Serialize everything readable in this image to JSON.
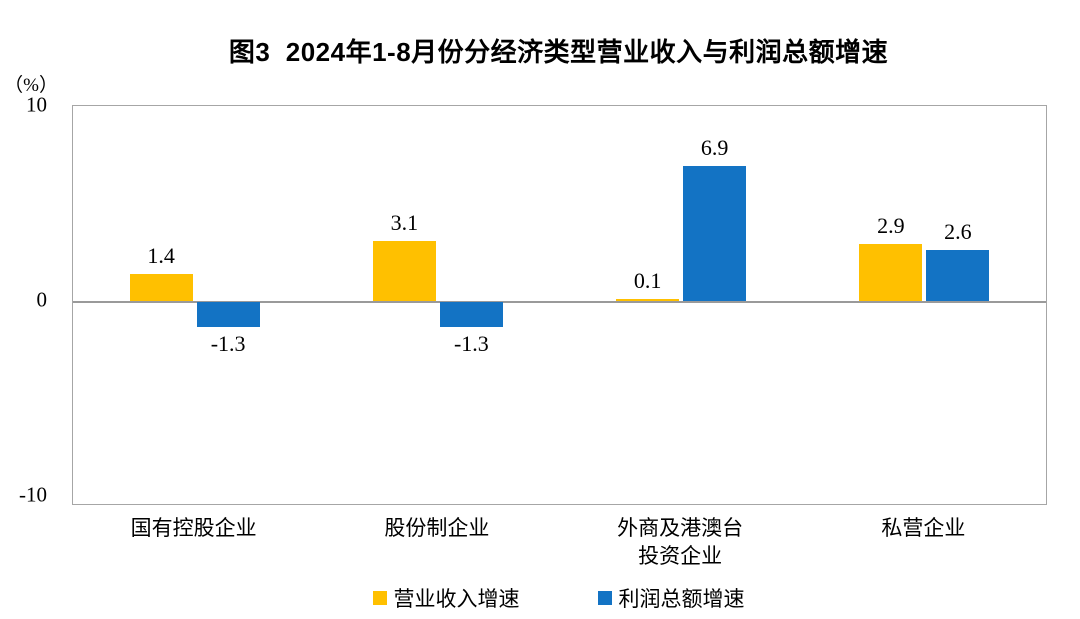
{
  "title": "图3  2024年1-8月份分经济类型营业收入与利润总额增速",
  "unit_label": "（%）",
  "chart_data": {
    "type": "bar",
    "title": "图3 2024年1-8月份分经济类型营业收入与利润总额增速",
    "ylabel": "（%）",
    "xlabel": "",
    "ylim": [
      -10,
      10
    ],
    "yticks": [
      10,
      0,
      -10
    ],
    "grid": "zero-line-only",
    "legend_position": "bottom",
    "categories": [
      "国有控股企业",
      "股份制企业",
      "外商及港澳台\n投资企业",
      "私营企业"
    ],
    "series": [
      {
        "name": "营业收入增速",
        "color": "#FFC000",
        "values": [
          1.4,
          3.1,
          0.1,
          2.9
        ]
      },
      {
        "name": "利润总额增速",
        "color": "#1373C4",
        "values": [
          -1.3,
          -1.3,
          6.9,
          2.6
        ]
      }
    ],
    "colors": {
      "revenue": "#FFC000",
      "profit": "#1373C4",
      "axis_border": "#a6a6a6",
      "zero_line": "#9a9a9a"
    }
  }
}
